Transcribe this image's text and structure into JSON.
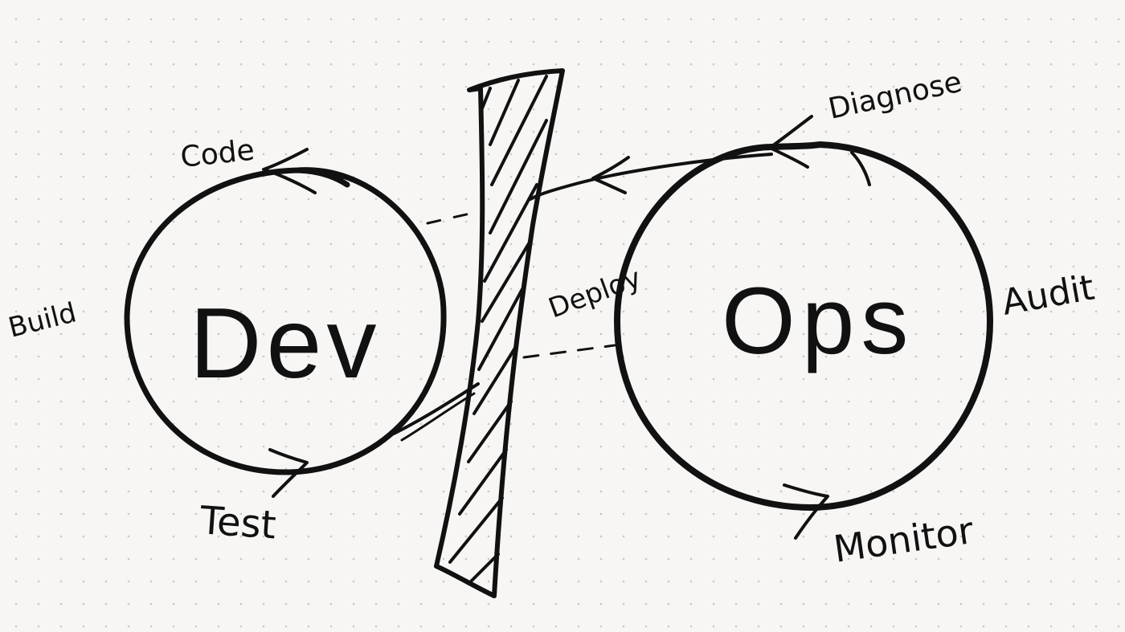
{
  "diagram": {
    "dev_circle_label": "Dev",
    "ops_circle_label": "Ops",
    "dev_steps": {
      "code": "Code",
      "build": "Build",
      "test": "Test"
    },
    "ops_steps": {
      "diagnose": "Diagnose",
      "audit": "Audit",
      "monitor": "Monitor"
    },
    "handoff_label": "Deploy",
    "ink_color": "#111111",
    "paper_color": "#f7f6f4",
    "grid_dot_color": "#c9c7c3"
  }
}
